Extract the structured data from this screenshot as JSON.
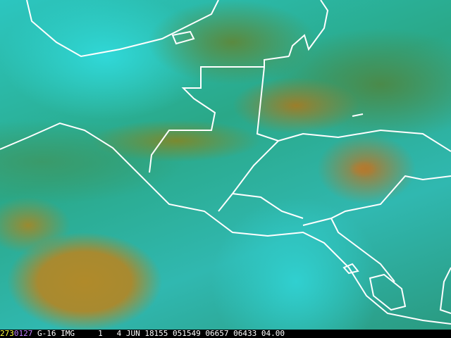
{
  "status_bar": {
    "frame_number": "273",
    "frame_code": "0127",
    "rest": " G-16 IMG     1   4 JUN 18155 051549 06657 06433 04.00"
  },
  "colors": {
    "cloud_cyan": "#2cc6c0",
    "warm_brown": "#b08a2a",
    "hot_orange": "#e07a20",
    "borders": "#ffffff",
    "frame_number": "#ffff40"
  }
}
